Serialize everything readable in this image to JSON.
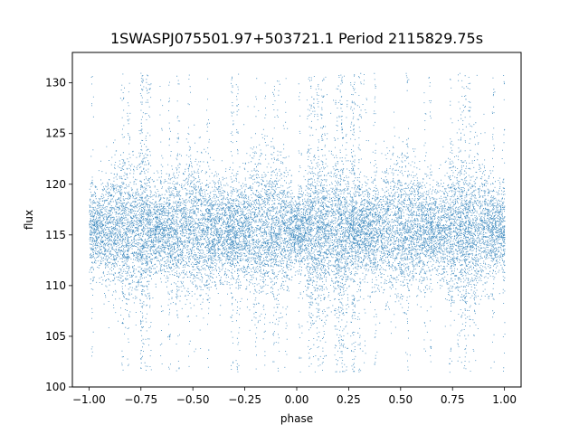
{
  "chart_data": {
    "type": "scatter",
    "title": "1SWASPJ075501.97+503721.1 Period 2115829.75s",
    "xlabel": "phase",
    "ylabel": "flux",
    "xlim": [
      -1.08,
      1.08
    ],
    "ylim": [
      100,
      133
    ],
    "x_ticks": [
      -1.0,
      -0.75,
      -0.5,
      -0.25,
      0.0,
      0.25,
      0.5,
      0.75,
      1.0
    ],
    "x_tick_labels": [
      "−1.00",
      "−0.75",
      "−0.50",
      "−0.25",
      "0.00",
      "0.25",
      "0.50",
      "0.75",
      "1.00"
    ],
    "y_ticks": [
      100,
      105,
      110,
      115,
      120,
      125,
      130
    ],
    "y_tick_labels": [
      "100",
      "105",
      "110",
      "115",
      "120",
      "125",
      "130"
    ],
    "grid": false,
    "marker_color": "#1f77b4",
    "series": [
      {
        "phase_range": [
          -1.0,
          1.0
        ],
        "flux_median": 115.5,
        "flux_core_range": [
          112,
          120
        ],
        "flux_full_range": [
          101.5,
          131
        ],
        "point_count_estimate": 18000
      }
    ]
  }
}
